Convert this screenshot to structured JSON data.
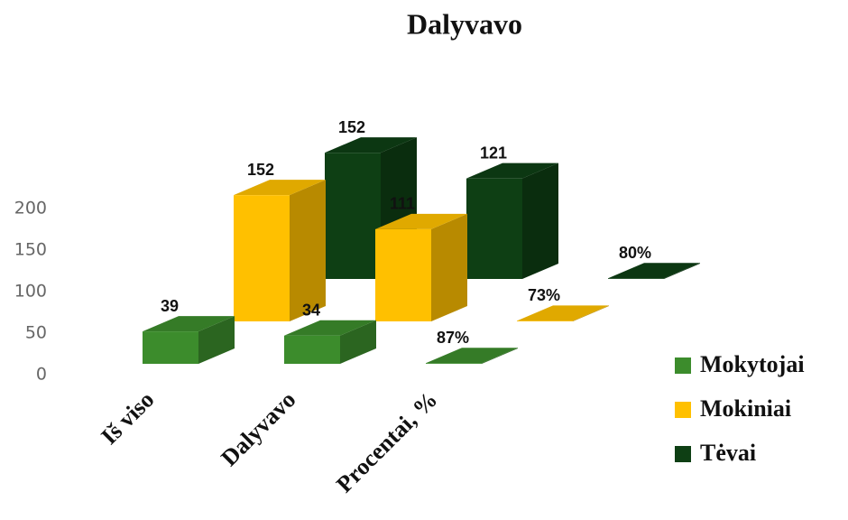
{
  "chart_data": {
    "type": "bar3d",
    "title": "Dalyvavo",
    "categories": [
      "Iš viso",
      "Dalyvavo",
      "Procentai, %"
    ],
    "series": [
      {
        "name": "Mokytojai",
        "color": "#3c8c2c",
        "values": [
          39,
          34,
          0.87
        ],
        "value_labels": [
          "39",
          "34",
          "87%"
        ]
      },
      {
        "name": "Mokiniai",
        "color": "#ffc000",
        "values": [
          152,
          111,
          0.73
        ],
        "value_labels": [
          "152",
          "111",
          "73%"
        ]
      },
      {
        "name": "Tėvai",
        "color": "#0e3f14",
        "values": [
          152,
          121,
          0.8
        ],
        "value_labels": [
          "152",
          "121",
          "80%"
        ]
      }
    ],
    "ylim": [
      0,
      200
    ],
    "yticks": [
      0,
      50,
      100,
      150,
      200
    ],
    "grid": false,
    "legend": "right"
  }
}
